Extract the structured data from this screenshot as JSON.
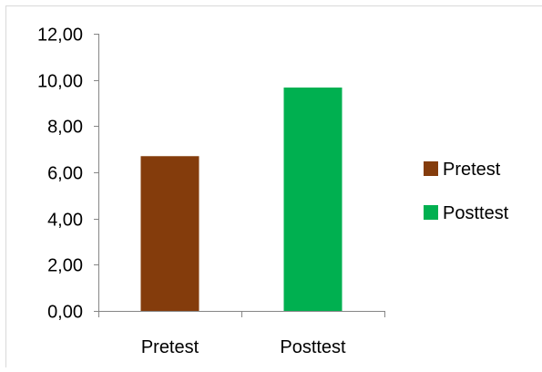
{
  "chart_data": {
    "type": "bar",
    "categories": [
      "Pretest",
      "Posttest"
    ],
    "values": [
      6.7,
      9.67
    ],
    "ylim": [
      0,
      12
    ],
    "yticks": [
      "0,00",
      "2,00",
      "4,00",
      "6,00",
      "8,00",
      "10,00",
      "12,00"
    ],
    "grid": false,
    "legend_position": "right",
    "legend": [
      {
        "label": "Pretest",
        "color": "#843C0C"
      },
      {
        "label": "Posttest",
        "color": "#00B050"
      }
    ],
    "colors": [
      "#843C0C",
      "#00B050"
    ]
  }
}
